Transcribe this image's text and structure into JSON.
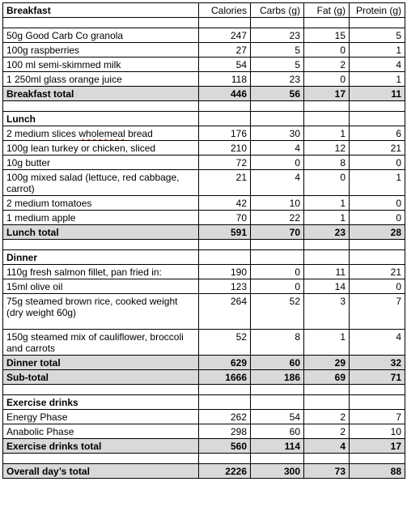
{
  "header": {
    "title": "Breakfast",
    "columns": [
      "Calories",
      "Carbs (g)",
      "Fat (g)",
      "Protein (g)"
    ]
  },
  "breakfast": {
    "items": [
      {
        "name": "50g Good Carb Co granola",
        "calories": "247",
        "carbs": "23",
        "fat": "15",
        "protein": "5"
      },
      {
        "name": "100g raspberries",
        "calories": "27",
        "carbs": "5",
        "fat": "0",
        "protein": "1"
      },
      {
        "name": "100 ml semi-skimmed milk",
        "calories": "54",
        "carbs": "5",
        "fat": "2",
        "protein": "4"
      },
      {
        "name": "1 250ml glass orange juice",
        "calories": "118",
        "carbs": "23",
        "fat": "0",
        "protein": "1"
      }
    ],
    "total": {
      "name": "Breakfast total",
      "calories": "446",
      "carbs": "56",
      "fat": "17",
      "protein": "11"
    }
  },
  "lunch": {
    "title": "Lunch",
    "items": [
      {
        "name_a": "2 medium slices ",
        "name_b": "wholemeal",
        "name_c": " bread",
        "calories": "176",
        "carbs": "30",
        "fat": "1",
        "protein": "6"
      },
      {
        "name": "100g lean turkey or chicken, sliced",
        "calories": "210",
        "carbs": "4",
        "fat": "12",
        "protein": "21"
      },
      {
        "name": "10g butter",
        "calories": "72",
        "carbs": "0",
        "fat": "8",
        "protein": "0"
      },
      {
        "name": "100g mixed salad (lettuce, red cabbage, carrot)",
        "calories": "21",
        "carbs": "4",
        "fat": "0",
        "protein": "1"
      },
      {
        "name": "2 medium tomatoes",
        "calories": "42",
        "carbs": "10",
        "fat": "1",
        "protein": "0"
      },
      {
        "name": "1 medium apple",
        "calories": "70",
        "carbs": "22",
        "fat": "1",
        "protein": "0"
      }
    ],
    "total": {
      "name": "Lunch total",
      "calories": "591",
      "carbs": "70",
      "fat": "23",
      "protein": "28"
    }
  },
  "dinner": {
    "title": "Dinner",
    "items": [
      {
        "name": "110g fresh salmon fillet, pan fried in:",
        "calories": "190",
        "carbs": "0",
        "fat": "11",
        "protein": "21"
      },
      {
        "name": "15ml olive oil",
        "calories": "123",
        "carbs": "0",
        "fat": "14",
        "protein": "0"
      },
      {
        "name": "75g steamed brown rice, cooked weight (dry weight 60g)",
        "calories": "264",
        "carbs": "52",
        "fat": "3",
        "protein": "7"
      },
      {
        "name": "150g steamed mix of cauliflower, broccoli and carrots",
        "calories": "52",
        "carbs": "8",
        "fat": "1",
        "protein": "4"
      }
    ],
    "total": {
      "name": "Dinner total",
      "calories": "629",
      "carbs": "60",
      "fat": "29",
      "protein": "32"
    }
  },
  "subtotal": {
    "name": "Sub-total",
    "calories": "1666",
    "carbs": "186",
    "fat": "69",
    "protein": "71"
  },
  "exercise": {
    "title": "Exercise drinks",
    "items": [
      {
        "name": "Energy Phase",
        "calories": "262",
        "carbs": "54",
        "fat": "2",
        "protein": "7"
      },
      {
        "name": "Anabolic Phase",
        "calories": "298",
        "carbs": "60",
        "fat": "2",
        "protein": "10"
      }
    ],
    "total": {
      "name": "Exercise drinks total",
      "calories": "560",
      "carbs": "114",
      "fat": "4",
      "protein": "17"
    }
  },
  "overall": {
    "name": "Overall day’s total",
    "calories": "2226",
    "carbs": "300",
    "fat": "73",
    "protein": "88"
  }
}
